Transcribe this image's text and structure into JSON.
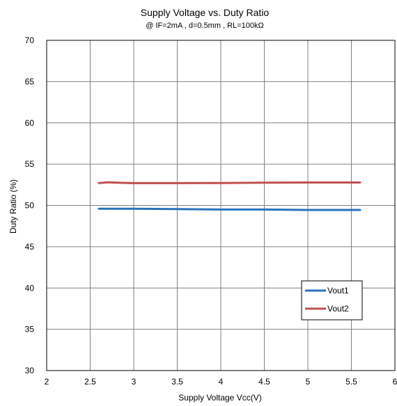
{
  "chart_data": {
    "type": "line",
    "title": "Supply Voltage vs. Duty Ratio",
    "subtitle": "@ IF=2mA , d=0.5mm , RL=100kΩ",
    "xlabel": "Supply Voltage Vcc(V)",
    "ylabel": "Duty Ratio (%)",
    "xlim": [
      2,
      6
    ],
    "ylim": [
      30,
      70
    ],
    "xticks": [
      "2",
      "2.5",
      "3",
      "3.5",
      "4",
      "4.5",
      "5",
      "5.5",
      "6"
    ],
    "yticks": [
      "30",
      "35",
      "40",
      "45",
      "50",
      "55",
      "60",
      "65",
      "70"
    ],
    "grid": true,
    "legend_position": "bottom-right",
    "series": [
      {
        "name": "Vout1",
        "color": "#2a72bb",
        "x": [
          2.6,
          2.8,
          3.0,
          3.5,
          4.0,
          4.5,
          5.0,
          5.6
        ],
        "y": [
          49.6,
          49.6,
          49.6,
          49.55,
          49.5,
          49.5,
          49.45,
          49.45
        ]
      },
      {
        "name": "Vout2",
        "color": "#c0504d",
        "x": [
          2.6,
          2.7,
          2.8,
          3.0,
          3.5,
          4.0,
          4.5,
          5.0,
          5.6
        ],
        "y": [
          52.7,
          52.8,
          52.75,
          52.7,
          52.7,
          52.72,
          52.75,
          52.78,
          52.78
        ]
      }
    ]
  }
}
